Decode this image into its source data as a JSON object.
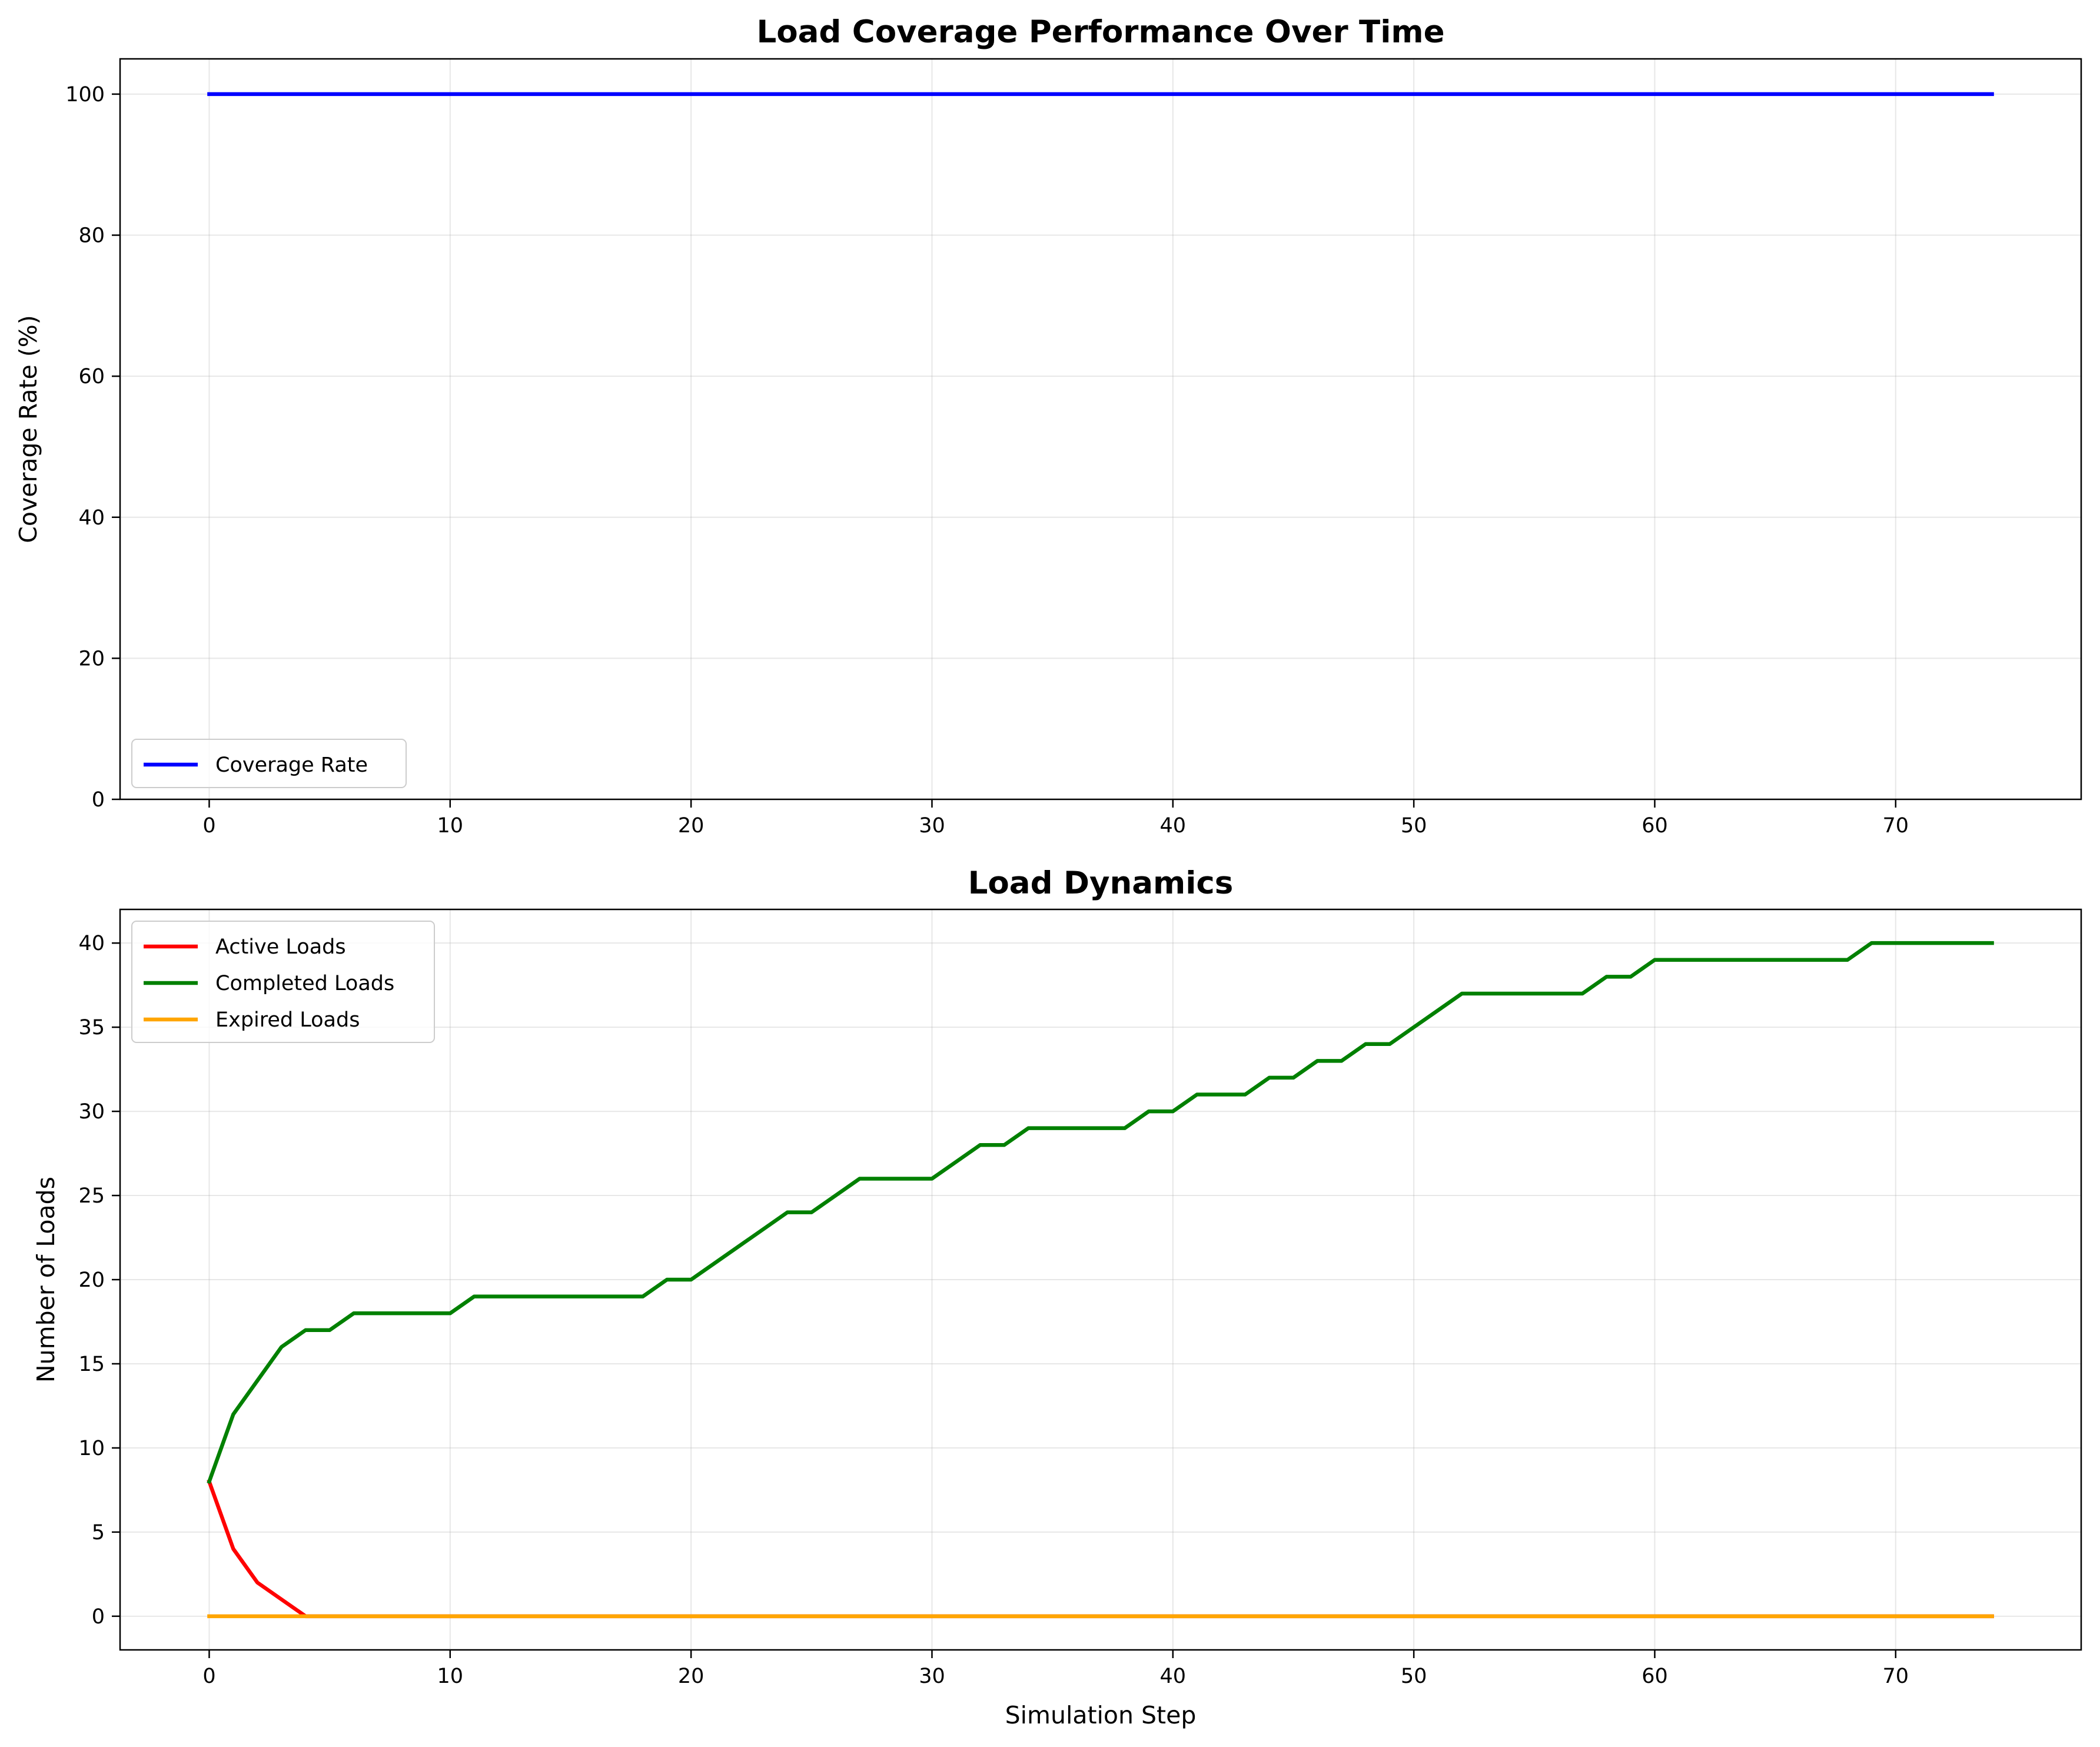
{
  "chart_data": [
    {
      "type": "line",
      "title": "Load Coverage Performance Over Time",
      "xlabel": "",
      "ylabel": "Coverage Rate (%)",
      "xlim": [
        -3.7,
        77.7
      ],
      "ylim": [
        0,
        105
      ],
      "xticks": [
        0,
        10,
        20,
        30,
        40,
        50,
        60,
        70
      ],
      "yticks": [
        0,
        20,
        40,
        60,
        80,
        100
      ],
      "grid": true,
      "legend_position": "lower-left",
      "series": [
        {
          "name": "Coverage Rate",
          "color": "#0000ff",
          "x": [
            0,
            74
          ],
          "y": [
            100,
            100
          ]
        }
      ]
    },
    {
      "type": "line",
      "title": "Load Dynamics",
      "xlabel": "Simulation Step",
      "ylabel": "Number of Loads",
      "xlim": [
        -3.7,
        77.7
      ],
      "ylim": [
        -2,
        42
      ],
      "xticks": [
        0,
        10,
        20,
        30,
        40,
        50,
        60,
        70
      ],
      "yticks": [
        0,
        5,
        10,
        15,
        20,
        25,
        30,
        35,
        40
      ],
      "grid": true,
      "legend_position": "upper-left",
      "series": [
        {
          "name": "Active Loads",
          "color": "#ff0000",
          "x": [
            0,
            1,
            2,
            3,
            4,
            74
          ],
          "y": [
            8,
            4,
            2,
            1,
            0,
            0
          ]
        },
        {
          "name": "Completed Loads",
          "color": "#008000",
          "x": [
            0,
            1,
            2,
            3,
            4,
            5,
            6,
            7,
            8,
            9,
            10,
            11,
            12,
            13,
            14,
            15,
            16,
            17,
            18,
            19,
            20,
            21,
            22,
            23,
            24,
            25,
            26,
            27,
            28,
            29,
            30,
            31,
            32,
            33,
            34,
            35,
            36,
            37,
            38,
            39,
            40,
            41,
            42,
            43,
            44,
            45,
            46,
            47,
            48,
            49,
            50,
            51,
            52,
            53,
            54,
            55,
            56,
            57,
            58,
            59,
            60,
            61,
            62,
            63,
            64,
            65,
            66,
            67,
            68,
            69,
            70,
            71,
            72,
            73,
            74
          ],
          "y": [
            8,
            12,
            14,
            16,
            17,
            17,
            18,
            18,
            18,
            18,
            18,
            19,
            19,
            19,
            19,
            19,
            19,
            19,
            19,
            20,
            20,
            21,
            22,
            23,
            24,
            24,
            25,
            26,
            26,
            26,
            26,
            27,
            28,
            28,
            29,
            29,
            29,
            29,
            29,
            30,
            30,
            31,
            31,
            31,
            32,
            32,
            33,
            33,
            34,
            34,
            35,
            36,
            37,
            37,
            37,
            37,
            37,
            37,
            38,
            38,
            39,
            39,
            39,
            39,
            39,
            39,
            39,
            39,
            39,
            40,
            40,
            40,
            40,
            40,
            40
          ]
        },
        {
          "name": "Expired Loads",
          "color": "#ffa500",
          "x": [
            0,
            74
          ],
          "y": [
            0,
            0
          ]
        }
      ]
    }
  ]
}
